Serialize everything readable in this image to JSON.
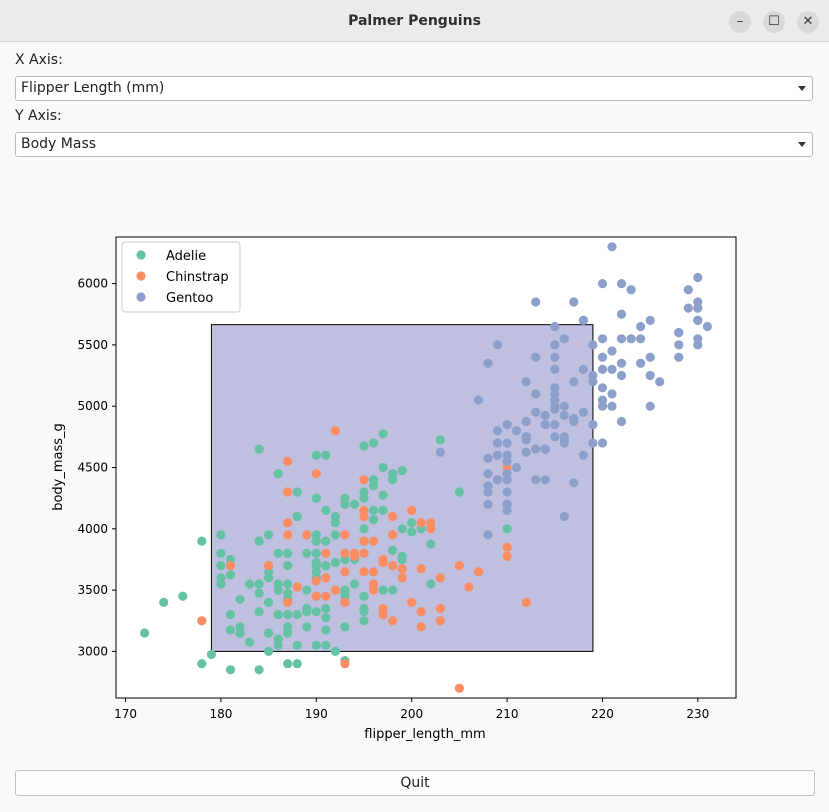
{
  "window": {
    "title": "Palmer Penguins",
    "minimize_glyph": "–",
    "maximize_glyph": "☐",
    "close_glyph": "✕"
  },
  "controls": {
    "x_label": "X Axis:",
    "x_value": "Flipper Length (mm)",
    "y_label": "Y Axis:",
    "y_value": "Body Mass",
    "quit_label": "Quit"
  },
  "chart_data": {
    "type": "scatter",
    "xlabel": "flipper_length_mm",
    "ylabel": "body_mass_g",
    "xlim": [
      169,
      234
    ],
    "ylim": [
      2620,
      6380
    ],
    "xticks": [
      170,
      180,
      190,
      200,
      210,
      220,
      230
    ],
    "yticks": [
      3000,
      3500,
      4000,
      4500,
      5000,
      5500,
      6000
    ],
    "legend_position": "top-left",
    "selection_rect": {
      "x": [
        179,
        219
      ],
      "y": [
        3000,
        5665
      ],
      "color": "#8080c0"
    },
    "series": [
      {
        "name": "Adelie",
        "color": "#66c2a5",
        "x": [
          181,
          186,
          195,
          193,
          190,
          181,
          195,
          193,
          190,
          186,
          180,
          182,
          191,
          198,
          185,
          195,
          197,
          184,
          194,
          174,
          180,
          189,
          185,
          180,
          187,
          183,
          187,
          172,
          180,
          178,
          178,
          188,
          184,
          195,
          196,
          190,
          180,
          181,
          184,
          182,
          195,
          186,
          196,
          185,
          190,
          182,
          179,
          190,
          191,
          186,
          188,
          190,
          200,
          187,
          191,
          186,
          193,
          181,
          194,
          185,
          195,
          185,
          192,
          184,
          192,
          195,
          188,
          190,
          198,
          190,
          190,
          196,
          197,
          190,
          195,
          191,
          184,
          187,
          195,
          189,
          196,
          187,
          193,
          191,
          194,
          190,
          189,
          189,
          190,
          202,
          205,
          185,
          186,
          187,
          208,
          190,
          196,
          178,
          192,
          192,
          203,
          183,
          190,
          193,
          184,
          199,
          190,
          181,
          197,
          198,
          191,
          193,
          197,
          191,
          196,
          188,
          199,
          189,
          189,
          187,
          198,
          176,
          202,
          186,
          199,
          191,
          195,
          191,
          210,
          190,
          197,
          193,
          199,
          187,
          190,
          191,
          200,
          185,
          193,
          193,
          187,
          188,
          190,
          192,
          185,
          190,
          184,
          195,
          193,
          187,
          201
        ],
        "y": [
          3750,
          3800,
          3250,
          3450,
          3650,
          3625,
          4675,
          3475,
          4250,
          3300,
          3700,
          3200,
          3800,
          4400,
          3700,
          3450,
          4500,
          3325,
          4200,
          3400,
          3600,
          3800,
          3950,
          3800,
          3800,
          3550,
          3200,
          3150,
          3950,
          3250,
          3900,
          3300,
          3900,
          3325,
          4150,
          3950,
          3550,
          3300,
          4650,
          3150,
          3900,
          3100,
          4400,
          3000,
          4600,
          3425,
          2975,
          3450,
          4150,
          3500,
          4300,
          3450,
          4050,
          2900,
          3700,
          3550,
          3800,
          2850,
          3750,
          3150,
          4400,
          3600,
          4050,
          2850,
          3950,
          3350,
          4100,
          3050,
          4450,
          3600,
          3900,
          3550,
          4150,
          3700,
          4250,
          3700,
          3900,
          3550,
          4000,
          3200,
          4700,
          3800,
          4200,
          3350,
          3550,
          3800,
          3500,
          3950,
          3600,
          3550,
          4300,
          3400,
          4450,
          3300,
          4300,
          3700,
          4350,
          2900,
          4100,
          3725,
          4725,
          3075,
          4250,
          2925,
          3550,
          3750,
          3900,
          3175,
          4775,
          3825,
          4600,
          3200,
          4275,
          3900,
          4075,
          2900,
          3775,
          3350,
          3325,
          3150,
          3500,
          3450,
          3875,
          3050,
          4000,
          3275,
          4300,
          3050,
          4000,
          3325,
          3500,
          3500,
          4475,
          3425,
          3900,
          3175,
          3975,
          3400,
          4250,
          3400,
          3475,
          3050,
          3725,
          3000,
          3650,
          4250,
          3475,
          3450,
          3750,
          3700,
          4000
        ]
      },
      {
        "name": "Chinstrap",
        "color": "#fc8d62",
        "x": [
          192,
          196,
          193,
          188,
          197,
          198,
          178,
          197,
          195,
          198,
          193,
          194,
          185,
          201,
          190,
          201,
          197,
          181,
          190,
          195,
          191,
          187,
          193,
          195,
          197,
          200,
          200,
          191,
          205,
          187,
          201,
          187,
          203,
          195,
          199,
          195,
          210,
          192,
          205,
          210,
          187,
          196,
          196,
          196,
          201,
          190,
          212,
          187,
          198,
          199,
          201,
          193,
          203,
          187,
          197,
          191,
          203,
          202,
          194,
          206,
          189,
          195,
          207,
          202,
          193,
          210,
          198
        ],
        "y": [
          3500,
          3900,
          3650,
          3525,
          3725,
          3950,
          3250,
          3750,
          4150,
          3700,
          3800,
          3775,
          3700,
          4050,
          3575,
          4050,
          3300,
          3700,
          3450,
          4400,
          3600,
          3400,
          2900,
          3800,
          3300,
          4150,
          3400,
          3800,
          3700,
          4550,
          3200,
          4300,
          3350,
          4100,
          3600,
          3900,
          3850,
          4800,
          2700,
          4500,
          3950,
          3650,
          3550,
          3500,
          3675,
          4450,
          3400,
          4300,
          3250,
          3675,
          3325,
          3950,
          3600,
          4050,
          3350,
          3450,
          3250,
          4050,
          3800,
          3525,
          3950,
          3650,
          3650,
          4000,
          3400,
          3775,
          4100
        ]
      },
      {
        "name": "Gentoo",
        "color": "#8da0cb",
        "x": [
          211,
          230,
          210,
          218,
          215,
          210,
          211,
          219,
          209,
          215,
          214,
          216,
          214,
          213,
          210,
          217,
          210,
          221,
          209,
          222,
          218,
          215,
          213,
          215,
          215,
          215,
          216,
          215,
          210,
          220,
          222,
          209,
          207,
          230,
          220,
          220,
          213,
          219,
          208,
          208,
          208,
          225,
          210,
          216,
          222,
          217,
          210,
          225,
          213,
          215,
          210,
          220,
          210,
          225,
          217,
          220,
          208,
          220,
          208,
          224,
          208,
          221,
          214,
          231,
          219,
          230,
          214,
          229,
          220,
          223,
          216,
          221,
          221,
          217,
          216,
          230,
          209,
          220,
          215,
          223,
          212,
          221,
          212,
          224,
          212,
          228,
          218,
          218,
          212,
          230,
          218,
          228,
          212,
          224,
          214,
          226,
          216,
          222,
          203,
          225,
          219,
          228,
          215,
          228,
          216,
          215,
          210,
          219,
          208,
          209,
          216,
          229,
          213,
          230,
          217,
          230,
          217,
          222,
          214,
          215,
          222,
          212,
          213
        ],
        "y": [
          4500,
          5700,
          4450,
          5700,
          5400,
          4550,
          4800,
          5200,
          4400,
          5150,
          4650,
          5550,
          4650,
          5850,
          4200,
          5850,
          4150,
          6300,
          4800,
          5350,
          5700,
          5000,
          4400,
          5050,
          5000,
          5100,
          4100,
          5650,
          4600,
          5550,
          5250,
          4700,
          5050,
          6050,
          5150,
          5400,
          4950,
          5250,
          4350,
          5350,
          3950,
          5700,
          4300,
          4750,
          5550,
          4900,
          4200,
          5400,
          5100,
          5300,
          4850,
          5300,
          4400,
          5000,
          4900,
          5050,
          4300,
          5000,
          4450,
          5550,
          4200,
          5300,
          4400,
          5650,
          4700,
          5700,
          4650,
          5800,
          4700,
          5550,
          4750,
          5000,
          5100,
          5200,
          4700,
          5800,
          4600,
          6000,
          4750,
          5950,
          4625,
          5450,
          4725,
          5350,
          4750,
          5600,
          4600,
          5300,
          4875,
          5550,
          4950,
          5400,
          4750,
          5650,
          4850,
          5200,
          4925,
          4875,
          4625,
          5250,
          4850,
          5600,
          4975,
          5500,
          4725,
          5500,
          4700,
          5500,
          4575,
          5500,
          5000,
          5950,
          4650,
          5500,
          4375,
          5850,
          4875,
          6000,
          4925,
          4850,
          5750,
          5200,
          5400
        ]
      }
    ]
  }
}
